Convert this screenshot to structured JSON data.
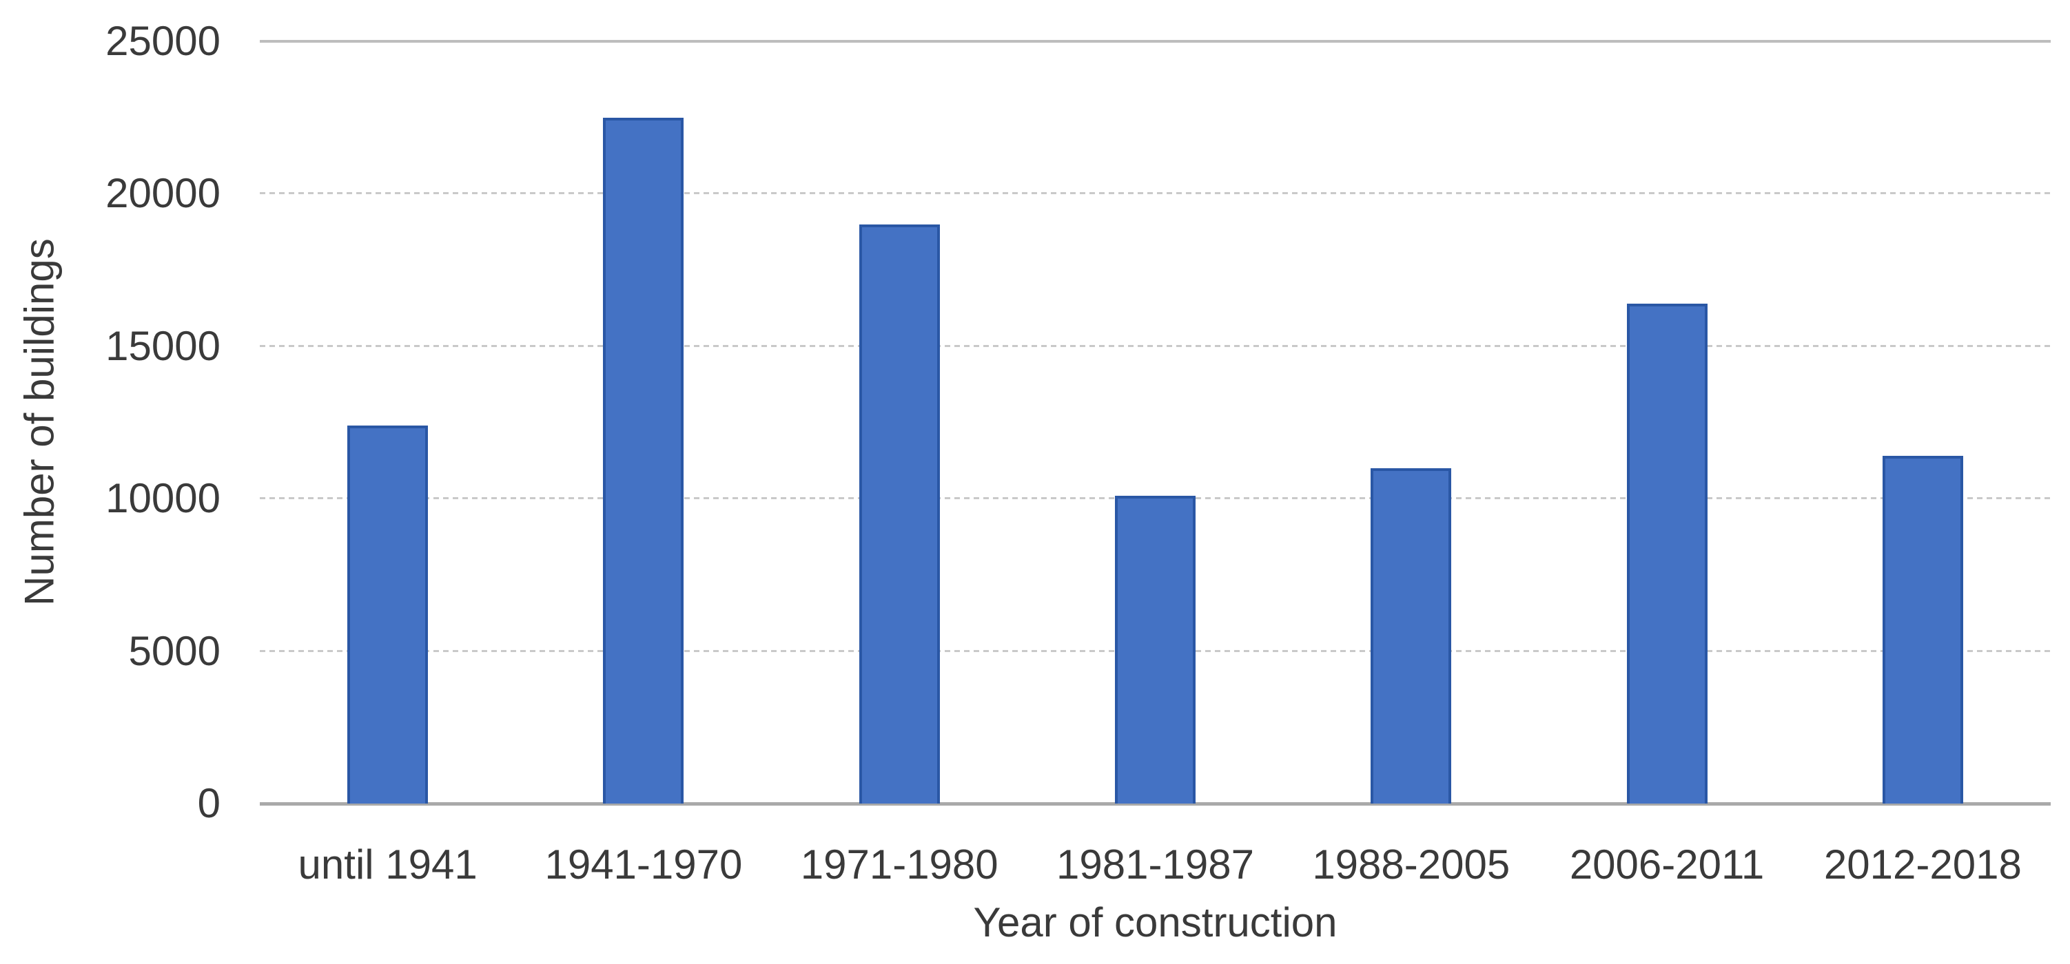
{
  "chart_data": {
    "type": "bar",
    "title": "",
    "categories": [
      "until 1941",
      "1941-1970",
      "1971-1980",
      "1981-1987",
      "1988-2005",
      "2006-2011",
      "2012-2018"
    ],
    "values": [
      12400,
      22500,
      19000,
      10100,
      11000,
      16400,
      11400
    ],
    "xlabel": "Year of construction",
    "ylabel": "Number of buildings",
    "ylim": [
      0,
      25000
    ],
    "ytick_step": 5000,
    "yticks": [
      "25000",
      "20000",
      "15000",
      "10000",
      "5000",
      "0"
    ],
    "grid": true,
    "legend": "none",
    "bar_color": "#4472C4",
    "bar_border_color": "#2A57A5",
    "gridline_color": "#C9C9C9",
    "top_gridline_color": "#BDBDBD",
    "axis_line_color": "#A9A9A9",
    "text_color": "#3A3A3A",
    "background_color": "#FFFFFF"
  }
}
